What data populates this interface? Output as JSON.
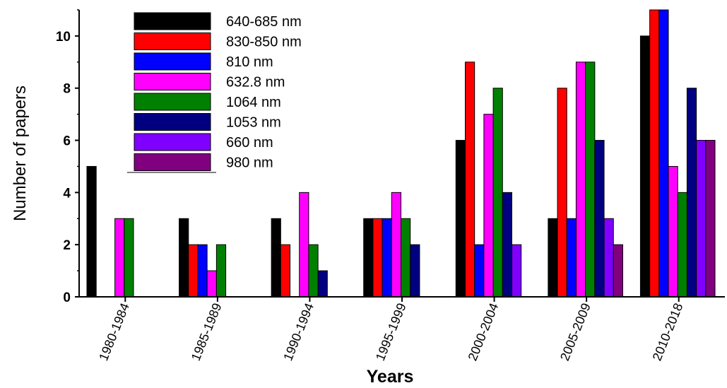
{
  "chart_data": {
    "type": "bar",
    "title": "",
    "xlabel": "Years",
    "ylabel": "Number of papers",
    "ylim": [
      0,
      11
    ],
    "yticks": [
      0,
      2,
      4,
      6,
      8,
      10
    ],
    "grid": false,
    "legend_position": "top-left",
    "categories": [
      "1980-1984",
      "1985-1989",
      "1990-1994",
      "1995-1999",
      "2000-2004",
      "2005-2009",
      "2010-2018"
    ],
    "series": [
      {
        "name": "640-685 nm",
        "color": "#000000",
        "values": [
          5,
          3,
          3,
          3,
          6,
          3,
          10
        ]
      },
      {
        "name": "830-850 nm",
        "color": "#ff0000",
        "values": [
          0,
          2,
          2,
          3,
          9,
          8,
          11
        ]
      },
      {
        "name": "810 nm",
        "color": "#0000ff",
        "values": [
          0,
          2,
          0,
          3,
          2,
          3,
          11
        ]
      },
      {
        "name": "632.8 nm",
        "color": "#ff00ff",
        "values": [
          3,
          1,
          4,
          4,
          7,
          9,
          5
        ]
      },
      {
        "name": "1064 nm",
        "color": "#008000",
        "values": [
          3,
          2,
          2,
          3,
          8,
          9,
          4
        ]
      },
      {
        "name": "1053 nm",
        "color": "#000080",
        "values": [
          0,
          0,
          1,
          2,
          4,
          6,
          8
        ]
      },
      {
        "name": "660 nm",
        "color": "#8000ff",
        "values": [
          0,
          0,
          0,
          0,
          2,
          3,
          6
        ]
      },
      {
        "name": "980 nm",
        "color": "#800080",
        "values": [
          0,
          0,
          0,
          0,
          0,
          2,
          6
        ]
      }
    ]
  }
}
